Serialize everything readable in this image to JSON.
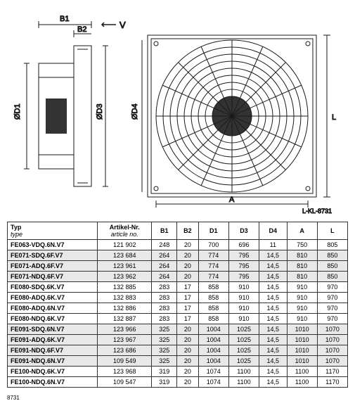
{
  "drawing": {
    "labels": {
      "b1": "B1",
      "b2": "B2",
      "v": "V",
      "d1": "ØD1",
      "d3": "ØD3",
      "d4": "ØD4",
      "a": "A",
      "l": "L",
      "ref": "L-KL-8731"
    },
    "colors": {
      "line": "#1a1a1a",
      "bg": "#ffffff"
    }
  },
  "table": {
    "headers": [
      {
        "main": "Typ",
        "sub": "type"
      },
      {
        "main": "Artikel-Nr.",
        "sub": "article no."
      },
      {
        "main": "B1",
        "sub": ""
      },
      {
        "main": "B2",
        "sub": ""
      },
      {
        "main": "D1",
        "sub": ""
      },
      {
        "main": "D3",
        "sub": ""
      },
      {
        "main": "D4",
        "sub": ""
      },
      {
        "main": "A",
        "sub": ""
      },
      {
        "main": "L",
        "sub": ""
      }
    ],
    "rows": [
      {
        "alt": false,
        "cells": [
          "FE063-VDQ.6N.V7",
          "121 902",
          "248",
          "20",
          "700",
          "696",
          "11",
          "750",
          "805"
        ]
      },
      {
        "alt": true,
        "cells": [
          "FE071-SDQ.6F.V7",
          "123 684",
          "264",
          "20",
          "774",
          "795",
          "14,5",
          "810",
          "850"
        ]
      },
      {
        "alt": true,
        "cells": [
          "FE071-ADQ.6F.V7",
          "123 961",
          "264",
          "20",
          "774",
          "795",
          "14,5",
          "810",
          "850"
        ]
      },
      {
        "alt": true,
        "cells": [
          "FE071-NDQ.6F.V7",
          "123 962",
          "264",
          "20",
          "774",
          "795",
          "14,5",
          "810",
          "850"
        ]
      },
      {
        "alt": false,
        "cells": [
          "FE080-SDQ.6K.V7",
          "132 885",
          "283",
          "17",
          "858",
          "910",
          "14,5",
          "910",
          "970"
        ]
      },
      {
        "alt": false,
        "cells": [
          "FE080-ADQ.6K.V7",
          "132 883",
          "283",
          "17",
          "858",
          "910",
          "14,5",
          "910",
          "970"
        ]
      },
      {
        "alt": false,
        "cells": [
          "FE080-ADQ.6N.V7",
          "132 886",
          "283",
          "17",
          "858",
          "910",
          "14,5",
          "910",
          "970"
        ]
      },
      {
        "alt": false,
        "cells": [
          "FE080-NDQ.6K.V7",
          "132 887",
          "283",
          "17",
          "858",
          "910",
          "14,5",
          "910",
          "970"
        ]
      },
      {
        "alt": true,
        "cells": [
          "FE091-SDQ.6N.V7",
          "123 966",
          "325",
          "20",
          "1004",
          "1025",
          "14,5",
          "1010",
          "1070"
        ]
      },
      {
        "alt": true,
        "cells": [
          "FE091-ADQ.6K.V7",
          "123 967",
          "325",
          "20",
          "1004",
          "1025",
          "14,5",
          "1010",
          "1070"
        ]
      },
      {
        "alt": true,
        "cells": [
          "FE091-NDQ.6F.V7",
          "123 686",
          "325",
          "20",
          "1004",
          "1025",
          "14,5",
          "1010",
          "1070"
        ]
      },
      {
        "alt": true,
        "cells": [
          "FE091-NDQ.6N.V7",
          "109 549",
          "325",
          "20",
          "1004",
          "1025",
          "14,5",
          "1010",
          "1070"
        ]
      },
      {
        "alt": false,
        "cells": [
          "FE100-NDQ.6K.V7",
          "123 968",
          "319",
          "20",
          "1074",
          "1100",
          "14,5",
          "1100",
          "1170"
        ]
      },
      {
        "alt": false,
        "cells": [
          "FE100-NDQ.6N.V7",
          "109 547",
          "319",
          "20",
          "1074",
          "1100",
          "14,5",
          "1100",
          "1170"
        ]
      }
    ],
    "footer": "8731"
  }
}
